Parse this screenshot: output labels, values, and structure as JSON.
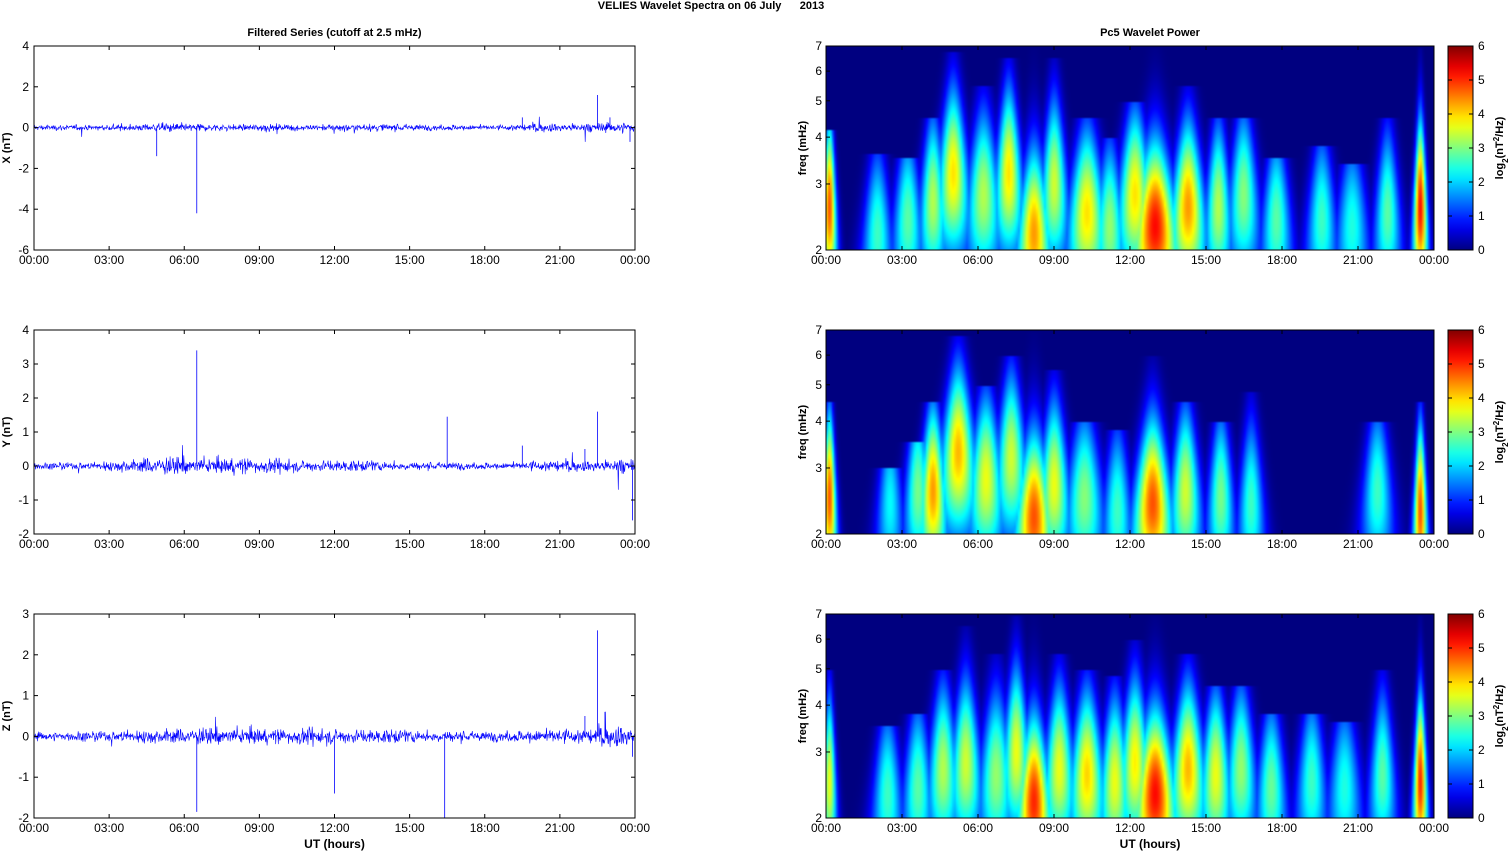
{
  "figure_title": "VELIES Wavelet Spectra on 06 July      2013",
  "chart_data": [
    {
      "type": "line",
      "panel": "X",
      "title": "Filtered Series (cutoff at 2.5 mHz)",
      "ylabel": "X (nT)",
      "xlabel": "",
      "xlim": [
        0,
        24
      ],
      "ylim": [
        -6,
        4
      ],
      "yticks": [
        "-6",
        "-4",
        "-2",
        "0",
        "2",
        "4"
      ],
      "xticks": [
        "00:00",
        "03:00",
        "06:00",
        "09:00",
        "12:00",
        "15:00",
        "18:00",
        "21:00",
        "00:00"
      ],
      "line_color": "#0000ff",
      "series": [
        {
          "x": [
            0,
            1,
            2,
            3,
            4,
            4.9,
            5,
            6,
            6.5,
            6.55,
            7,
            8,
            9,
            10,
            11,
            12,
            13,
            14,
            15,
            16,
            17,
            18,
            19,
            19.5,
            20,
            21,
            22,
            22.5,
            23,
            23.8,
            24
          ],
          "y": [
            0.0,
            0.0,
            0.05,
            0.0,
            0.1,
            -1.4,
            0.1,
            0.0,
            -4.2,
            0.2,
            0.0,
            0.1,
            0.05,
            0.0,
            0.1,
            0.0,
            0.1,
            0.0,
            0.05,
            0.0,
            0.1,
            0.0,
            0.1,
            0.5,
            0.2,
            0.4,
            -0.3,
            1.6,
            0.5,
            -0.7,
            2.7
          ]
        }
      ],
      "noise_amplitude": [
        0.25,
        0.25,
        0.25,
        0.25,
        0.3,
        0.35,
        0.4,
        0.35,
        0.3,
        0.3,
        0.35,
        0.3,
        0.3,
        0.3,
        0.3,
        0.3,
        0.3,
        0.3,
        0.25,
        0.25,
        0.25,
        0.25,
        0.3,
        0.4,
        0.4,
        0.4,
        0.45,
        0.5,
        0.5
      ]
    },
    {
      "type": "heatmap",
      "panel": "X",
      "title": "Pc5 Wavelet Power",
      "ylabel": "freq (mHz)",
      "xlabel": "",
      "xlim": [
        0,
        24
      ],
      "ylim": [
        2,
        7
      ],
      "y_scale": "log",
      "yticks": [
        "2",
        "3",
        "4",
        "5",
        "6",
        "7"
      ],
      "xticks": [
        "00:00",
        "03:00",
        "06:00",
        "09:00",
        "12:00",
        "15:00",
        "18:00",
        "21:00",
        "00:00"
      ],
      "colorbar_label": "log2(nT^2/Hz)",
      "colorbar_label_base": "log",
      "colorbar_label_sub": "2",
      "colorbar_label_rest": "(nT",
      "colorbar_label_sup": "2",
      "colorbar_label_end": "/Hz)",
      "clim": [
        0,
        6
      ],
      "colorbar_ticks": [
        "0",
        "1",
        "2",
        "3",
        "4",
        "5",
        "6"
      ],
      "colormap": "jet",
      "events": [
        {
          "t": 0.1,
          "f": 2.6,
          "p": 5.5,
          "w": 0.18,
          "top": 4.2
        },
        {
          "t": 2.0,
          "f": 2.2,
          "p": 3.0,
          "w": 0.4,
          "top": 3.6
        },
        {
          "t": 3.2,
          "f": 2.4,
          "p": 3.2,
          "w": 0.4,
          "top": 3.5
        },
        {
          "t": 4.2,
          "f": 2.7,
          "p": 3.8,
          "w": 0.35,
          "top": 4.5
        },
        {
          "t": 5.0,
          "f": 3.2,
          "p": 4.5,
          "w": 0.4,
          "top": 6.8
        },
        {
          "t": 6.2,
          "f": 2.8,
          "p": 3.8,
          "w": 0.45,
          "top": 5.5
        },
        {
          "t": 7.2,
          "f": 3.2,
          "p": 4.5,
          "w": 0.35,
          "top": 6.5
        },
        {
          "t": 8.2,
          "f": 2.2,
          "p": 5.0,
          "w": 0.45,
          "top": 7.0
        },
        {
          "t": 9.0,
          "f": 3.0,
          "p": 4.0,
          "w": 0.35,
          "top": 6.5
        },
        {
          "t": 10.3,
          "f": 2.5,
          "p": 4.5,
          "w": 0.5,
          "top": 4.5
        },
        {
          "t": 11.2,
          "f": 2.3,
          "p": 3.6,
          "w": 0.4,
          "top": 4.0
        },
        {
          "t": 12.2,
          "f": 2.8,
          "p": 4.5,
          "w": 0.45,
          "top": 5.0
        },
        {
          "t": 13.0,
          "f": 2.3,
          "p": 6.0,
          "w": 0.6,
          "top": 7.0
        },
        {
          "t": 14.3,
          "f": 2.6,
          "p": 5.0,
          "w": 0.45,
          "top": 5.5
        },
        {
          "t": 15.5,
          "f": 2.6,
          "p": 3.8,
          "w": 0.35,
          "top": 4.5
        },
        {
          "t": 16.5,
          "f": 2.8,
          "p": 3.5,
          "w": 0.4,
          "top": 4.5
        },
        {
          "t": 17.8,
          "f": 2.4,
          "p": 3.2,
          "w": 0.4,
          "top": 3.5
        },
        {
          "t": 19.6,
          "f": 2.4,
          "p": 3.0,
          "w": 0.4,
          "top": 3.8
        },
        {
          "t": 20.8,
          "f": 2.3,
          "p": 2.8,
          "w": 0.45,
          "top": 3.4
        },
        {
          "t": 22.2,
          "f": 2.5,
          "p": 3.2,
          "w": 0.35,
          "top": 4.5
        },
        {
          "t": 23.5,
          "f": 2.6,
          "p": 6.0,
          "w": 0.18,
          "top": 7.0
        }
      ]
    },
    {
      "type": "line",
      "panel": "Y",
      "title": "",
      "ylabel": "Y (nT)",
      "xlabel": "",
      "xlim": [
        0,
        24
      ],
      "ylim": [
        -2,
        4
      ],
      "yticks": [
        "-2",
        "-1",
        "0",
        "1",
        "2",
        "3",
        "4"
      ],
      "xticks": [
        "00:00",
        "03:00",
        "06:00",
        "09:00",
        "12:00",
        "15:00",
        "18:00",
        "21:00",
        "00:00"
      ],
      "line_color": "#0000ff",
      "series": [
        {
          "x": [
            0,
            1,
            2,
            3,
            4,
            5,
            6,
            6.5,
            6.55,
            7,
            8,
            9,
            10,
            11,
            12,
            13,
            14,
            15,
            16,
            16.5,
            16.55,
            17,
            18,
            19,
            19.5,
            20,
            21,
            22,
            22.5,
            23,
            23.9,
            24
          ],
          "y": [
            0.0,
            0.0,
            0.05,
            0.0,
            0.1,
            0.1,
            0.0,
            3.4,
            0.1,
            0.0,
            0.1,
            0.05,
            0.0,
            0.1,
            0.0,
            0.1,
            0.0,
            0.05,
            0.0,
            1.45,
            0.0,
            0.1,
            0.0,
            0.1,
            0.6,
            0.2,
            0.3,
            0.5,
            1.6,
            0.4,
            -1.6,
            0.3
          ]
        }
      ],
      "noise_amplitude": [
        0.18,
        0.2,
        0.22,
        0.28,
        0.35,
        0.45,
        0.45,
        0.4,
        0.4,
        0.45,
        0.4,
        0.38,
        0.3,
        0.3,
        0.3,
        0.28,
        0.25,
        0.22,
        0.2,
        0.2,
        0.18,
        0.18,
        0.2,
        0.3,
        0.32,
        0.3,
        0.35,
        0.4,
        0.4
      ]
    },
    {
      "type": "heatmap",
      "panel": "Y",
      "title": "",
      "ylabel": "freq (mHz)",
      "xlabel": "",
      "xlim": [
        0,
        24
      ],
      "ylim": [
        2,
        7
      ],
      "y_scale": "log",
      "yticks": [
        "2",
        "3",
        "4",
        "5",
        "6",
        "7"
      ],
      "xticks": [
        "00:00",
        "03:00",
        "06:00",
        "09:00",
        "12:00",
        "15:00",
        "18:00",
        "21:00",
        "00:00"
      ],
      "colorbar_label": "log2(nT^2/Hz)",
      "colorbar_label_base": "log",
      "colorbar_label_sub": "2",
      "colorbar_label_rest": "(nT",
      "colorbar_label_sup": "2",
      "colorbar_label_end": "/Hz)",
      "clim": [
        0,
        6
      ],
      "colorbar_ticks": [
        "0",
        "1",
        "2",
        "3",
        "4",
        "5",
        "6"
      ],
      "colormap": "jet",
      "events": [
        {
          "t": 0.1,
          "f": 2.5,
          "p": 5.5,
          "w": 0.18,
          "top": 4.5
        },
        {
          "t": 2.5,
          "f": 2.4,
          "p": 2.6,
          "w": 0.35,
          "top": 3.0
        },
        {
          "t": 3.6,
          "f": 2.6,
          "p": 3.4,
          "w": 0.35,
          "top": 3.5
        },
        {
          "t": 4.2,
          "f": 2.6,
          "p": 5.0,
          "w": 0.35,
          "top": 4.5
        },
        {
          "t": 5.2,
          "f": 3.3,
          "p": 4.8,
          "w": 0.45,
          "top": 6.8
        },
        {
          "t": 6.3,
          "f": 2.8,
          "p": 4.2,
          "w": 0.45,
          "top": 5.0
        },
        {
          "t": 7.3,
          "f": 3.2,
          "p": 4.0,
          "w": 0.4,
          "top": 6.0
        },
        {
          "t": 8.2,
          "f": 2.2,
          "p": 5.5,
          "w": 0.5,
          "top": 7.0
        },
        {
          "t": 9.0,
          "f": 2.7,
          "p": 4.2,
          "w": 0.4,
          "top": 5.5
        },
        {
          "t": 10.2,
          "f": 2.5,
          "p": 3.5,
          "w": 0.5,
          "top": 4.0
        },
        {
          "t": 11.5,
          "f": 2.3,
          "p": 3.0,
          "w": 0.4,
          "top": 3.8
        },
        {
          "t": 12.9,
          "f": 2.4,
          "p": 5.5,
          "w": 0.5,
          "top": 6.0
        },
        {
          "t": 14.2,
          "f": 2.6,
          "p": 4.0,
          "w": 0.4,
          "top": 4.5
        },
        {
          "t": 15.6,
          "f": 2.5,
          "p": 3.4,
          "w": 0.35,
          "top": 4.0
        },
        {
          "t": 16.8,
          "f": 2.4,
          "p": 3.0,
          "w": 0.35,
          "top": 4.8
        },
        {
          "t": 21.8,
          "f": 2.6,
          "p": 3.0,
          "w": 0.4,
          "top": 4.0
        },
        {
          "t": 23.5,
          "f": 2.3,
          "p": 5.5,
          "w": 0.18,
          "top": 4.5
        }
      ]
    },
    {
      "type": "line",
      "panel": "Z",
      "title": "",
      "ylabel": "Z (nT)",
      "xlabel": "UT (hours)",
      "xlim": [
        0,
        24
      ],
      "ylim": [
        -2,
        3
      ],
      "yticks": [
        "-2",
        "-1",
        "0",
        "1",
        "2",
        "3"
      ],
      "xticks": [
        "00:00",
        "03:00",
        "06:00",
        "09:00",
        "12:00",
        "15:00",
        "18:00",
        "21:00",
        "00:00"
      ],
      "line_color": "#0000ff",
      "series": [
        {
          "x": [
            0,
            1,
            2,
            3,
            4,
            5,
            6,
            6.5,
            6.55,
            7,
            8,
            9,
            10,
            11,
            12,
            12.02,
            13,
            14,
            15,
            16,
            16.4,
            16.45,
            17,
            18,
            19,
            20,
            21,
            22,
            22.5,
            22.8,
            23,
            23.9,
            24
          ],
          "y": [
            0.0,
            0.0,
            0.05,
            0.0,
            0.1,
            0.1,
            0.0,
            -1.85,
            0.1,
            0.0,
            0.1,
            0.05,
            0.0,
            0.1,
            -1.4,
            0.0,
            0.1,
            0.0,
            0.05,
            0.0,
            -2.0,
            0.0,
            0.1,
            0.0,
            0.1,
            0.3,
            0.3,
            0.5,
            2.6,
            0.6,
            0.3,
            -0.5,
            1.8
          ]
        }
      ],
      "noise_amplitude": [
        0.2,
        0.2,
        0.22,
        0.25,
        0.3,
        0.32,
        0.35,
        0.35,
        0.35,
        0.35,
        0.35,
        0.35,
        0.38,
        0.35,
        0.33,
        0.3,
        0.3,
        0.28,
        0.25,
        0.25,
        0.22,
        0.22,
        0.25,
        0.3,
        0.35,
        0.35,
        0.45,
        0.5,
        0.5
      ]
    },
    {
      "type": "heatmap",
      "panel": "Z",
      "title": "",
      "ylabel": "freq (mHz)",
      "xlabel": "UT (hours)",
      "xlim": [
        0,
        24
      ],
      "ylim": [
        2,
        7
      ],
      "y_scale": "log",
      "yticks": [
        "2",
        "3",
        "4",
        "5",
        "6",
        "7"
      ],
      "xticks": [
        "00:00",
        "03:00",
        "06:00",
        "09:00",
        "12:00",
        "15:00",
        "18:00",
        "21:00",
        "00:00"
      ],
      "colorbar_label": "log2(nT^2/Hz)",
      "colorbar_label_base": "log",
      "colorbar_label_sub": "2",
      "colorbar_label_rest": "(nT",
      "colorbar_label_sup": "2",
      "colorbar_label_end": "/Hz)",
      "clim": [
        0,
        6
      ],
      "colorbar_ticks": [
        "0",
        "1",
        "2",
        "3",
        "4",
        "5",
        "6"
      ],
      "colormap": "jet",
      "events": [
        {
          "t": 0.1,
          "f": 2.5,
          "p": 4.2,
          "w": 0.18,
          "top": 5.0
        },
        {
          "t": 2.4,
          "f": 2.3,
          "p": 3.0,
          "w": 0.4,
          "top": 3.5
        },
        {
          "t": 3.6,
          "f": 2.4,
          "p": 3.2,
          "w": 0.4,
          "top": 3.8
        },
        {
          "t": 4.6,
          "f": 2.7,
          "p": 3.8,
          "w": 0.4,
          "top": 5.0
        },
        {
          "t": 5.5,
          "f": 2.8,
          "p": 4.0,
          "w": 0.4,
          "top": 6.5
        },
        {
          "t": 6.7,
          "f": 2.6,
          "p": 3.6,
          "w": 0.45,
          "top": 5.5
        },
        {
          "t": 7.5,
          "f": 3.0,
          "p": 4.2,
          "w": 0.35,
          "top": 7.0
        },
        {
          "t": 8.2,
          "f": 2.2,
          "p": 5.8,
          "w": 0.45,
          "top": 7.0
        },
        {
          "t": 9.2,
          "f": 2.7,
          "p": 4.2,
          "w": 0.4,
          "top": 5.5
        },
        {
          "t": 10.3,
          "f": 2.6,
          "p": 4.6,
          "w": 0.45,
          "top": 5.0
        },
        {
          "t": 11.4,
          "f": 2.5,
          "p": 4.2,
          "w": 0.4,
          "top": 4.8
        },
        {
          "t": 12.2,
          "f": 2.8,
          "p": 4.4,
          "w": 0.4,
          "top": 6.0
        },
        {
          "t": 13.0,
          "f": 2.3,
          "p": 6.0,
          "w": 0.55,
          "top": 7.0
        },
        {
          "t": 14.3,
          "f": 2.7,
          "p": 4.8,
          "w": 0.45,
          "top": 5.5
        },
        {
          "t": 15.4,
          "f": 2.6,
          "p": 4.2,
          "w": 0.4,
          "top": 4.5
        },
        {
          "t": 16.4,
          "f": 2.7,
          "p": 3.6,
          "w": 0.4,
          "top": 4.5
        },
        {
          "t": 17.6,
          "f": 2.4,
          "p": 3.3,
          "w": 0.4,
          "top": 3.8
        },
        {
          "t": 19.2,
          "f": 2.5,
          "p": 3.0,
          "w": 0.4,
          "top": 3.8
        },
        {
          "t": 20.5,
          "f": 2.4,
          "p": 2.8,
          "w": 0.45,
          "top": 3.6
        },
        {
          "t": 22.0,
          "f": 2.6,
          "p": 3.2,
          "w": 0.35,
          "top": 5.0
        },
        {
          "t": 23.5,
          "f": 2.5,
          "p": 5.8,
          "w": 0.18,
          "top": 7.0
        }
      ]
    }
  ]
}
